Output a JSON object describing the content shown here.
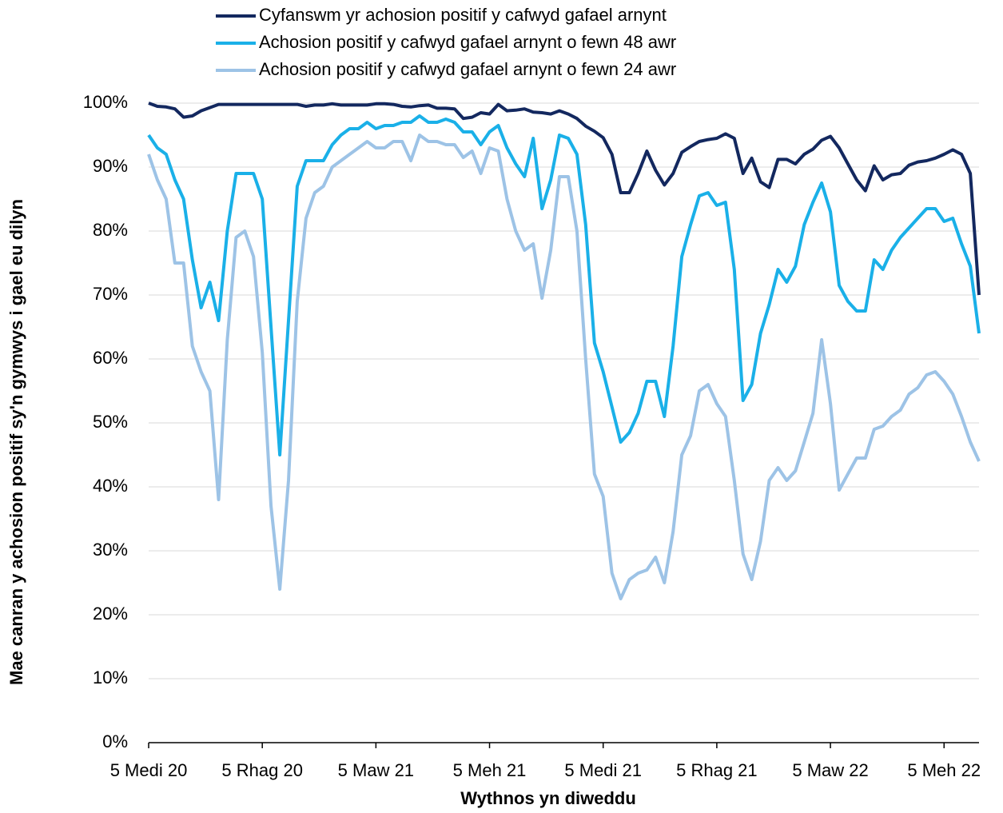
{
  "chart_data": {
    "type": "line",
    "xlabel": "Wythnos yn diweddu",
    "ylabel": "Mae canran y achosion positif sy'n gymwys i gael eu dilyn",
    "categories": [
      "5 Medi 20",
      null,
      null,
      null,
      null,
      null,
      null,
      null,
      null,
      null,
      null,
      null,
      null,
      "5 Rhag 20",
      null,
      null,
      null,
      null,
      null,
      null,
      null,
      null,
      null,
      null,
      null,
      null,
      "5 Maw 21",
      null,
      null,
      null,
      null,
      null,
      null,
      null,
      null,
      null,
      null,
      null,
      null,
      "5 Meh 21",
      null,
      null,
      null,
      null,
      null,
      null,
      null,
      null,
      null,
      null,
      null,
      null,
      "5 Medi 21",
      null,
      null,
      null,
      null,
      null,
      null,
      null,
      null,
      null,
      null,
      null,
      null,
      "5 Rhag 21",
      null,
      null,
      null,
      null,
      null,
      null,
      null,
      null,
      null,
      null,
      null,
      null,
      "5 Maw 22",
      null,
      null,
      null,
      null,
      null,
      null,
      null,
      null,
      null,
      null,
      null,
      null,
      "5 Meh 22",
      null,
      null,
      null,
      null
    ],
    "series": [
      {
        "name": "Cyfanswm yr achosion positif y cafwyd gafael arnynt",
        "color": "#13285f",
        "values": [
          100,
          99.5,
          99.4,
          99.1,
          97.8,
          98,
          98.8,
          99.3,
          99.8,
          99.8,
          99.8,
          99.8,
          99.8,
          99.8,
          99.8,
          99.8,
          99.8,
          99.8,
          99.5,
          99.7,
          99.7,
          99.9,
          99.7,
          99.7,
          99.7,
          99.7,
          99.9,
          99.9,
          99.8,
          99.5,
          99.4,
          99.6,
          99.7,
          99.2,
          99.2,
          99.1,
          97.6,
          97.8,
          98.5,
          98.3,
          99.8,
          98.8,
          98.9,
          99.1,
          98.6,
          98.5,
          98.3,
          98.8,
          98.3,
          97.6,
          96.4,
          95.6,
          94.6,
          92,
          86,
          86,
          89,
          92.5,
          89.5,
          87.2,
          89,
          92.3,
          93.2,
          94,
          94.3,
          94.5,
          95.2,
          94.5,
          89,
          91.4,
          87.7,
          86.8,
          91.2,
          91.2,
          90.5,
          92,
          92.8,
          94.2,
          94.8,
          93,
          90.5,
          88,
          86.3,
          90.2,
          88,
          88.8,
          89,
          90.3,
          90.8,
          91,
          91.4,
          92,
          92.7,
          92,
          89,
          70
        ]
      },
      {
        "name": "Achosion positif y cafwyd gafael arnynt o fewn 48 awr",
        "color": "#1ab0e8",
        "values": [
          95,
          93,
          92,
          88,
          85,
          75.5,
          68,
          72,
          66,
          80,
          89,
          89,
          89,
          85,
          65,
          45,
          66,
          87,
          91,
          91,
          91,
          93.5,
          95,
          96,
          96,
          97,
          96,
          96.5,
          96.5,
          97,
          97,
          98,
          97,
          97,
          97.5,
          97,
          95.5,
          95.5,
          93.5,
          95.5,
          96.5,
          93,
          90.5,
          88.5,
          94.5,
          83.5,
          88,
          95,
          94.5,
          92,
          81,
          62.5,
          58,
          52.5,
          47,
          48.5,
          51.5,
          56.5,
          56.5,
          51,
          62,
          76,
          81,
          85.5,
          86,
          84,
          84.5,
          74,
          53.5,
          56,
          64,
          68.5,
          74,
          72,
          74.5,
          81,
          84.5,
          87.5,
          83,
          71.5,
          69,
          67.5,
          67.5,
          75.5,
          74,
          77,
          79,
          80.5,
          82,
          83.5,
          83.5,
          81.5,
          82,
          78,
          74.5,
          64
        ]
      },
      {
        "name": "Achosion positif y cafwyd gafael arnynt o fewn 24 awr",
        "color": "#9dc3e6",
        "values": [
          92,
          88,
          85,
          75,
          75,
          62,
          58,
          55,
          38,
          63,
          79,
          80,
          76,
          61,
          37,
          24,
          41,
          69,
          82,
          86,
          87,
          90,
          91,
          92,
          93,
          94,
          93,
          93,
          94,
          94,
          91,
          95,
          94,
          94,
          93.5,
          93.5,
          91.5,
          92.5,
          89,
          93,
          92.5,
          85,
          80,
          77,
          78,
          69.5,
          77,
          88.5,
          88.5,
          80,
          60,
          42,
          38.5,
          26.5,
          22.5,
          25.5,
          26.5,
          27,
          29,
          25,
          33,
          45,
          48,
          55,
          56,
          53,
          51,
          41,
          29.5,
          25.5,
          31.5,
          41,
          43,
          41,
          42.5,
          47,
          51.5,
          63,
          53,
          39.5,
          42,
          44.5,
          44.5,
          49,
          49.5,
          51,
          52,
          54.5,
          55.5,
          57.5,
          58,
          56.5,
          54.5,
          51,
          47,
          44
        ]
      }
    ],
    "ylim": [
      0,
      100
    ],
    "yticks": [
      {
        "value": 0,
        "label": "0%"
      },
      {
        "value": 10,
        "label": "10%"
      },
      {
        "value": 20,
        "label": "20%"
      },
      {
        "value": 30,
        "label": "30%"
      },
      {
        "value": 40,
        "label": "40%"
      },
      {
        "value": 50,
        "label": "50%"
      },
      {
        "value": 60,
        "label": "60%"
      },
      {
        "value": 70,
        "label": "70%"
      },
      {
        "value": 80,
        "label": "80%"
      },
      {
        "value": 90,
        "label": "90%"
      },
      {
        "value": 100,
        "label": "100%"
      }
    ],
    "grid": true,
    "legend": "top"
  }
}
